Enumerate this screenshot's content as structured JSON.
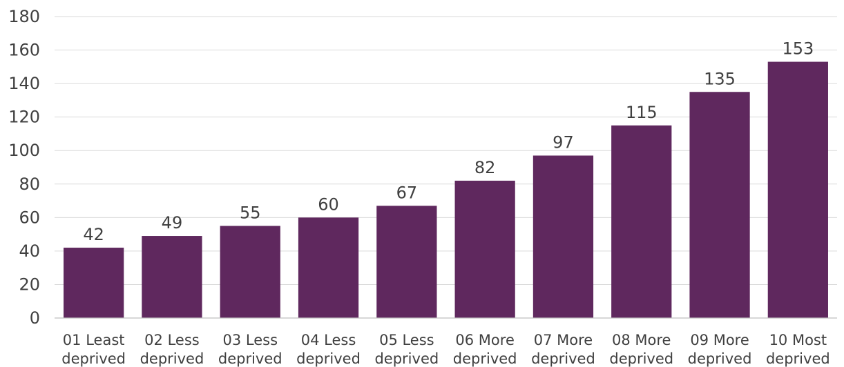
{
  "chart_data": {
    "type": "bar",
    "categories": [
      [
        "01 Least",
        "deprived"
      ],
      [
        "02 Less",
        "deprived"
      ],
      [
        "03 Less",
        "deprived"
      ],
      [
        "04 Less",
        "deprived"
      ],
      [
        "05 Less",
        "deprived"
      ],
      [
        "06 More",
        "deprived"
      ],
      [
        "07 More",
        "deprived"
      ],
      [
        "08 More",
        "deprived"
      ],
      [
        "09 More",
        "deprived"
      ],
      [
        "10 Most",
        "deprived"
      ]
    ],
    "values": [
      42,
      49,
      55,
      60,
      67,
      82,
      97,
      115,
      135,
      153
    ],
    "ylim": [
      0,
      180
    ],
    "yticks": [
      "0",
      "20",
      "40",
      "60",
      "80",
      "100",
      "120",
      "140",
      "160",
      "180"
    ],
    "grid": true,
    "bar_color": "#5f285e",
    "title": "",
    "xlabel": "",
    "ylabel": ""
  }
}
